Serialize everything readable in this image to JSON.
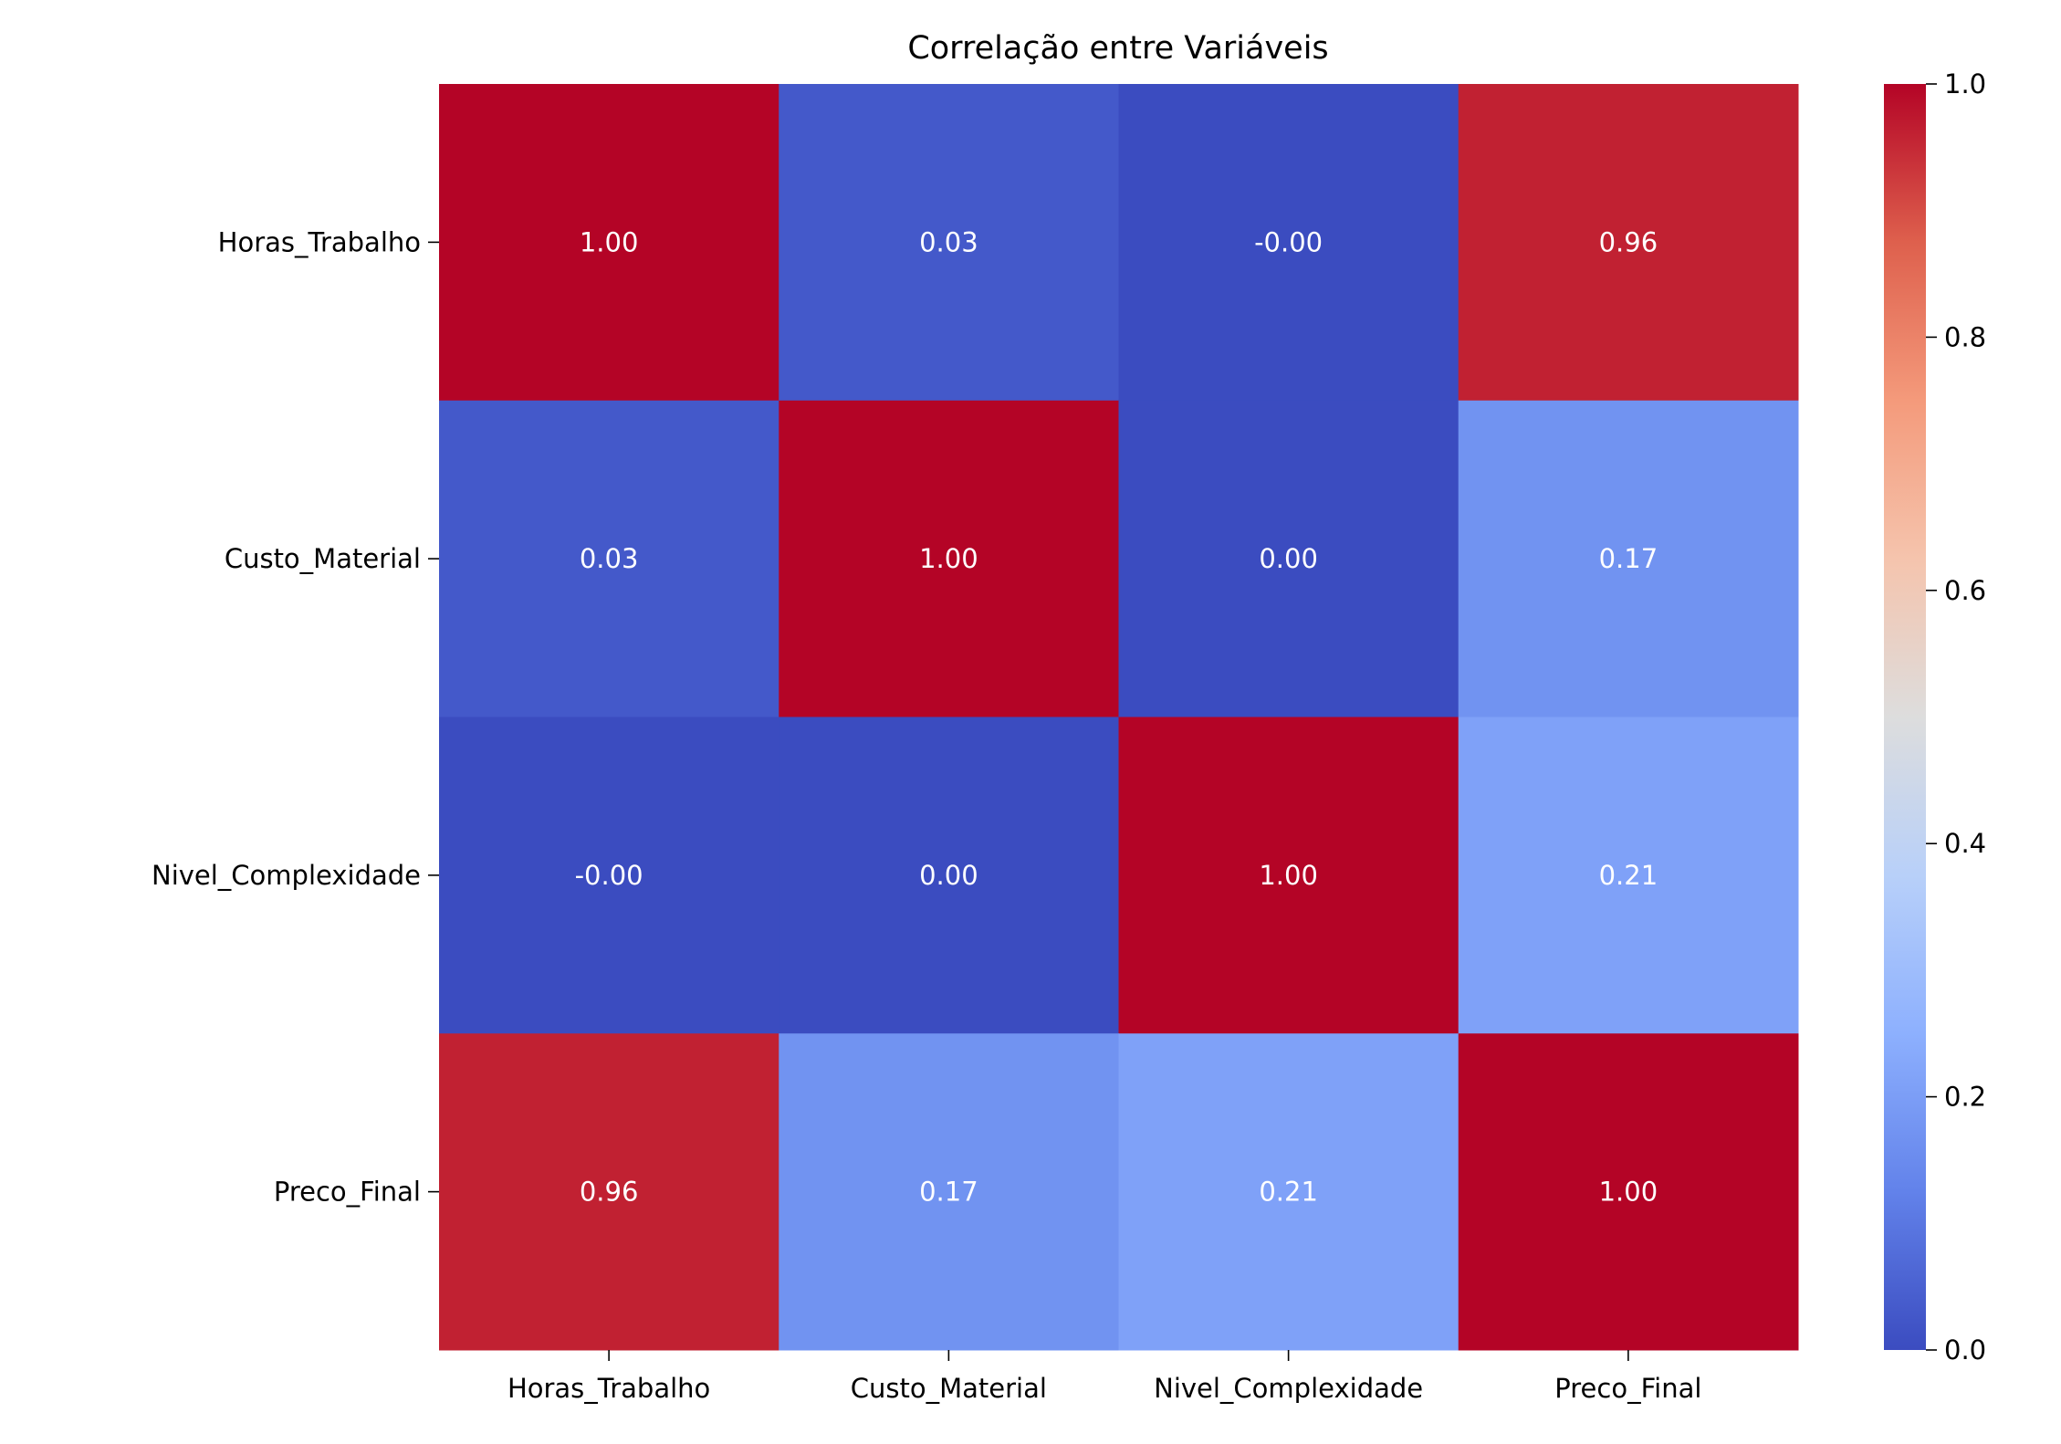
{
  "chart_data": {
    "type": "heatmap",
    "title": "Correlação entre Variáveis",
    "xlabel": "",
    "ylabel": "",
    "x_categories": [
      "Horas_Trabalho",
      "Custo_Material",
      "Nivel_Complexidade",
      "Preco_Final"
    ],
    "y_categories": [
      "Horas_Trabalho",
      "Custo_Material",
      "Nivel_Complexidade",
      "Preco_Final"
    ],
    "values": [
      [
        1.0,
        0.03,
        -0.0,
        0.96
      ],
      [
        0.03,
        1.0,
        0.0,
        0.17
      ],
      [
        -0.0,
        0.0,
        1.0,
        0.21
      ],
      [
        0.96,
        0.17,
        0.21,
        1.0
      ]
    ],
    "annotations": [
      [
        "1.00",
        "0.03",
        "-0.00",
        "0.96"
      ],
      [
        "0.03",
        "1.00",
        "0.00",
        "0.17"
      ],
      [
        "-0.00",
        "0.00",
        "1.00",
        "0.21"
      ],
      [
        "0.96",
        "0.17",
        "0.21",
        "1.00"
      ]
    ],
    "colormap": "coolwarm",
    "colorbar": {
      "range": [
        0.0,
        1.0
      ],
      "ticks": [
        0.0,
        0.2,
        0.4,
        0.6,
        0.8,
        1.0
      ],
      "tick_labels": [
        "0.0",
        "0.2",
        "0.4",
        "0.6",
        "0.8",
        "1.0"
      ]
    }
  }
}
